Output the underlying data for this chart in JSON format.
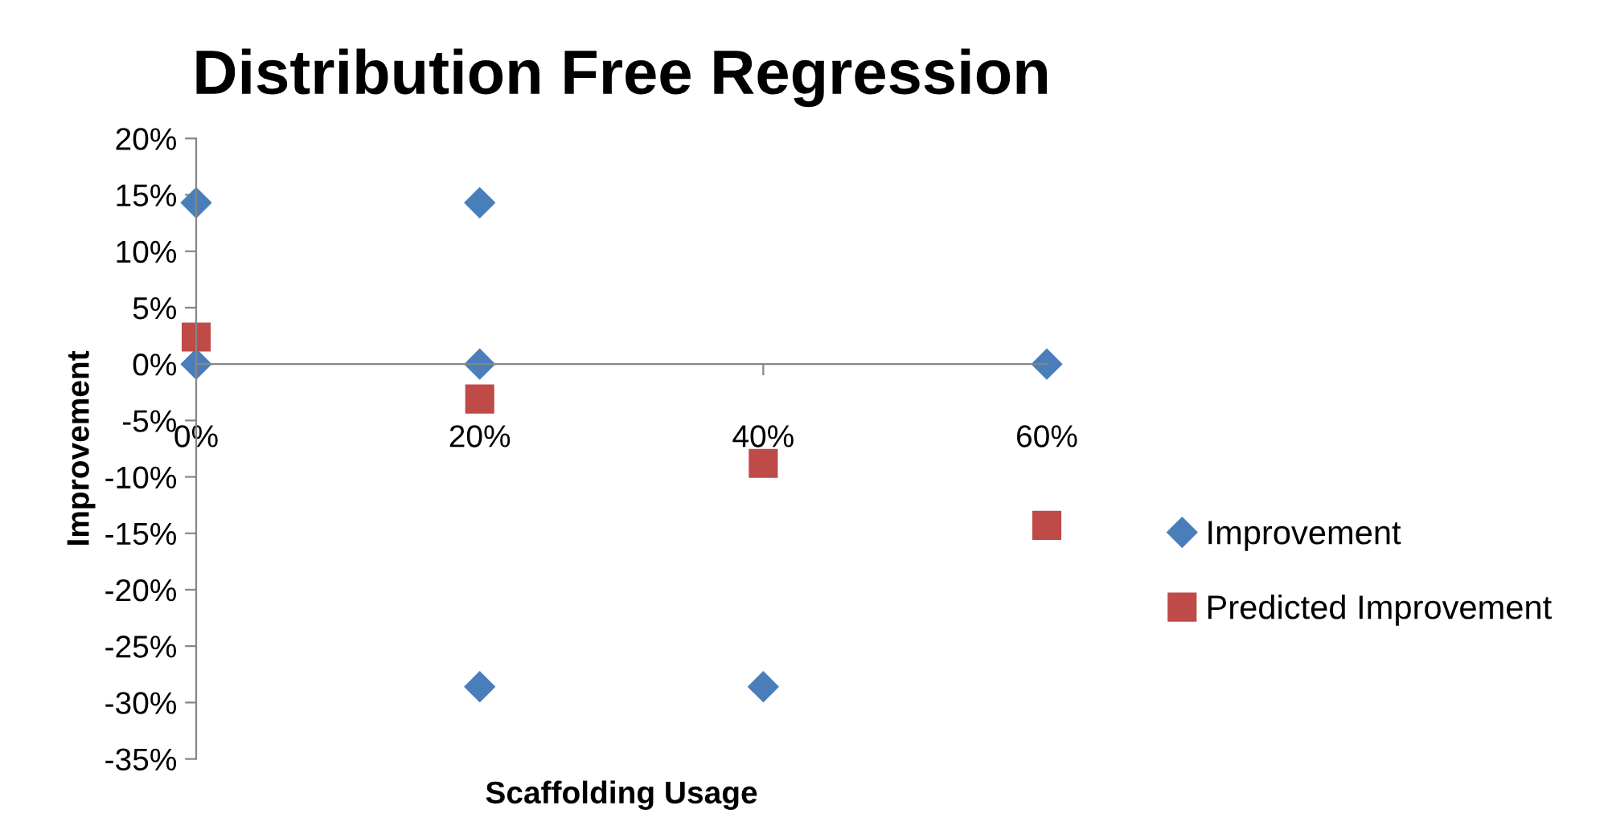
{
  "chart_data": {
    "type": "scatter",
    "title": "Distribution Free Regression",
    "xlabel": "Scaffolding Usage",
    "ylabel": "Improvement",
    "series": [
      {
        "name": "Improvement",
        "color": "#4a7ebb",
        "marker": "diamond",
        "x": [
          0,
          0,
          20,
          20,
          20,
          40,
          60
        ],
        "values": [
          14.3,
          0,
          14.3,
          0,
          -28.6,
          -28.6,
          0
        ]
      },
      {
        "name": "Predicted Improvement",
        "color": "#be4b48",
        "marker": "square",
        "x": [
          0,
          20,
          40,
          60
        ],
        "values": [
          2.4,
          -3.1,
          -8.8,
          -14.3
        ]
      }
    ],
    "xlim": [
      0,
      60
    ],
    "xticks": [
      {
        "value": 0,
        "label": "0%"
      },
      {
        "value": 20,
        "label": "20%"
      },
      {
        "value": 40,
        "label": "40%"
      },
      {
        "value": 60,
        "label": "60%"
      }
    ],
    "ylim": [
      -35,
      20
    ],
    "yticks": [
      {
        "value": -35,
        "label": "-35%"
      },
      {
        "value": -30,
        "label": "-30%"
      },
      {
        "value": -25,
        "label": "-25%"
      },
      {
        "value": -20,
        "label": "-20%"
      },
      {
        "value": -15,
        "label": "-15%"
      },
      {
        "value": -10,
        "label": "-10%"
      },
      {
        "value": -5,
        "label": "-5%"
      },
      {
        "value": 0,
        "label": "0%"
      },
      {
        "value": 5,
        "label": "5%"
      },
      {
        "value": 10,
        "label": "10%"
      },
      {
        "value": 15,
        "label": "15%"
      },
      {
        "value": 20,
        "label": "20%"
      }
    ],
    "grid": false,
    "legend": "right"
  }
}
